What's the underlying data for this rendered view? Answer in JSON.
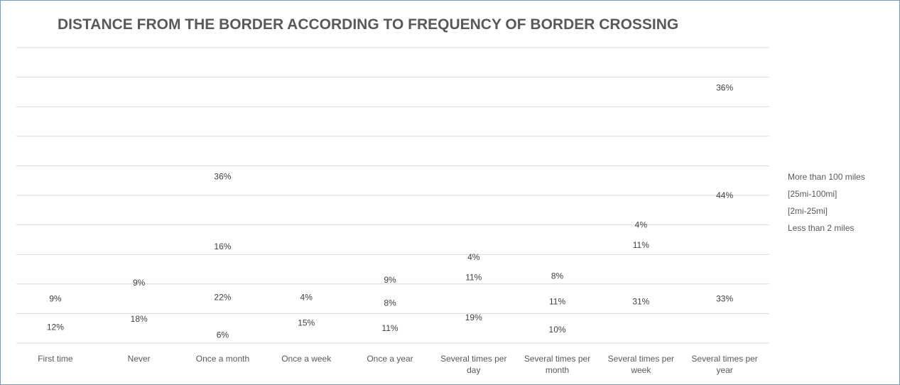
{
  "chart_data": {
    "type": "bar",
    "title": "DISTANCE FROM THE BORDER ACCORDING TO FREQUENCY OF BORDER CROSSING",
    "xlabel": "",
    "ylabel": "",
    "grid": true,
    "legend_position": "right",
    "categories": [
      "First time",
      "Never",
      "Once a month",
      "Once a week",
      "Once a year",
      "Several times per day",
      "Several times per month",
      "Several times per week",
      "Several times per year"
    ],
    "series": [
      {
        "name": "More than 100 miles",
        "values": [
          9,
          9,
          36,
          4,
          9,
          4,
          8,
          4,
          36
        ],
        "labels": [
          "9%",
          "9%",
          "36%",
          "4%",
          "9%",
          "4%",
          "8%",
          "4%",
          "36%"
        ]
      },
      {
        "name": "[25mi-100mi]",
        "values": [
          null,
          18,
          16,
          15,
          8,
          11,
          11,
          11,
          44
        ],
        "labels": [
          "",
          "18%",
          "16%",
          "15%",
          "8%",
          "11%",
          "11%",
          "11%",
          "44%"
        ]
      },
      {
        "name": "[2mi-25mi]",
        "values": [
          12,
          null,
          22,
          null,
          11,
          19,
          10,
          31,
          33
        ],
        "labels": [
          "12%",
          "",
          "22%",
          "",
          "11%",
          "19%",
          "10%",
          "31%",
          "33%"
        ]
      },
      {
        "name": "Less than 2 miles",
        "values": [
          null,
          null,
          6,
          null,
          null,
          null,
          null,
          null,
          null
        ],
        "labels": [
          "",
          "",
          "6%",
          "",
          "",
          "",
          "",
          "",
          ""
        ]
      }
    ]
  }
}
